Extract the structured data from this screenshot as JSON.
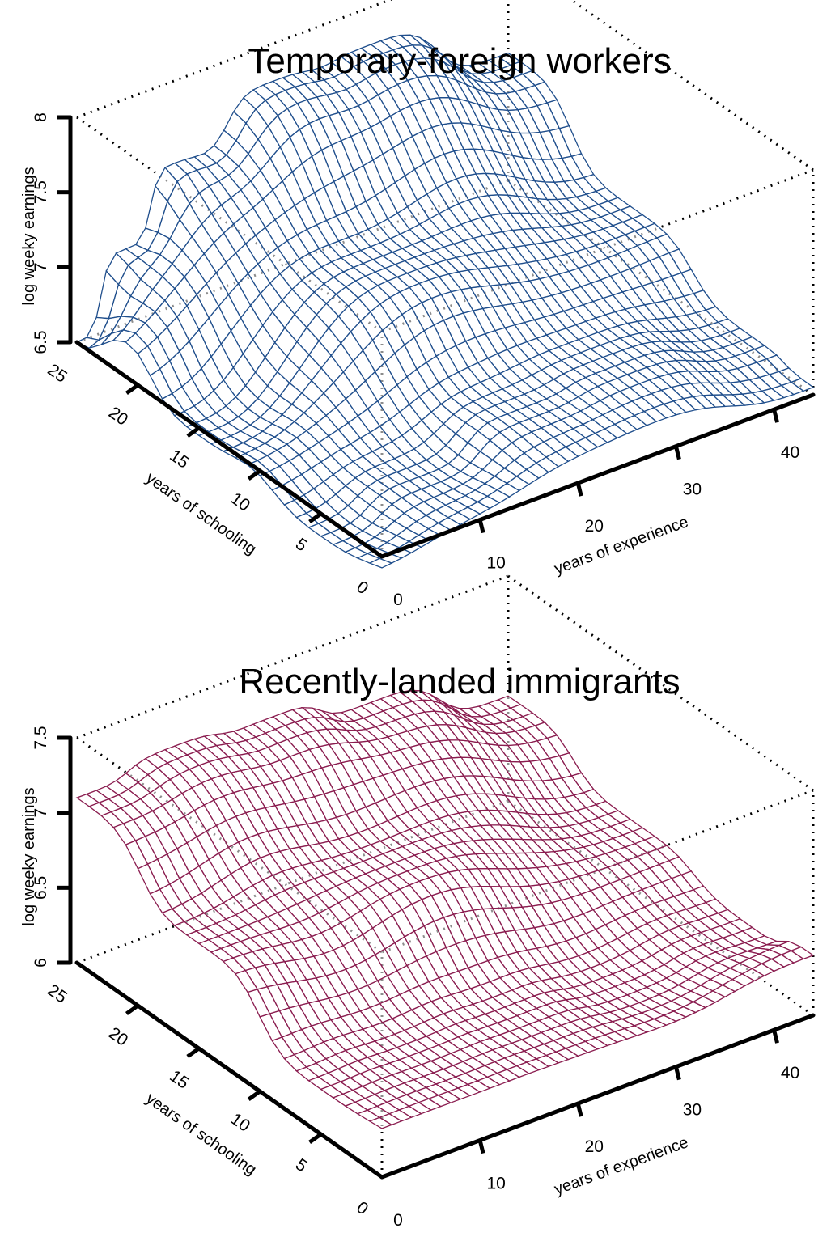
{
  "chart_data": [
    {
      "type": "surface",
      "title": "Temporary-foreign workers",
      "color": "#1f4e8c",
      "xlabel": "years of experience",
      "ylabel": "years of schooling",
      "zlabel": "log weeky earnings",
      "x_ticks": [
        0,
        10,
        20,
        30,
        40
      ],
      "y_ticks": [
        0,
        5,
        10,
        15,
        20,
        25
      ],
      "z_ticks": [
        "6.5",
        "7",
        "7.5",
        "8"
      ],
      "xlim": [
        0,
        44
      ],
      "ylim": [
        0,
        25
      ],
      "zlim": [
        6.5,
        8
      ],
      "grid": "dotted box",
      "surface_samples": [
        {
          "x": 0,
          "y": 25,
          "z": 6.5
        },
        {
          "x": 5,
          "y": 25,
          "z": 7.0
        },
        {
          "x": 10,
          "y": 25,
          "z": 7.45
        },
        {
          "x": 20,
          "y": 25,
          "z": 7.75
        },
        {
          "x": 30,
          "y": 25,
          "z": 7.75
        },
        {
          "x": 44,
          "y": 25,
          "z": 7.35
        },
        {
          "x": 0,
          "y": 15,
          "z": 6.45
        },
        {
          "x": 20,
          "y": 15,
          "z": 7.1
        },
        {
          "x": 44,
          "y": 15,
          "z": 6.9
        },
        {
          "x": 0,
          "y": 5,
          "z": 6.35
        },
        {
          "x": 10,
          "y": 5,
          "z": 6.5
        },
        {
          "x": 20,
          "y": 5,
          "z": 6.7
        },
        {
          "x": 30,
          "y": 5,
          "z": 6.75
        },
        {
          "x": 44,
          "y": 5,
          "z": 6.6
        },
        {
          "x": 44,
          "y": 0,
          "z": 6.55
        }
      ]
    },
    {
      "type": "surface",
      "title": "Recently-landed immigrants",
      "color": "#8a1c4f",
      "xlabel": "years of experience",
      "ylabel": "years of schooling",
      "zlabel": "log weeky earnings",
      "x_ticks": [
        0,
        10,
        20,
        30,
        40
      ],
      "y_ticks": [
        0,
        5,
        10,
        15,
        20,
        25
      ],
      "z_ticks": [
        "6",
        "6.5",
        "7",
        "7.5"
      ],
      "xlim": [
        0,
        44
      ],
      "ylim": [
        0,
        25
      ],
      "zlim": [
        6,
        7.5
      ],
      "grid": "dotted box",
      "surface_samples": [
        {
          "x": 0,
          "y": 25,
          "z": 7.1
        },
        {
          "x": 10,
          "y": 25,
          "z": 7.2
        },
        {
          "x": 20,
          "y": 25,
          "z": 7.15
        },
        {
          "x": 30,
          "y": 25,
          "z": 7.0
        },
        {
          "x": 44,
          "y": 25,
          "z": 6.7
        },
        {
          "x": 0,
          "y": 15,
          "z": 6.7
        },
        {
          "x": 20,
          "y": 15,
          "z": 6.75
        },
        {
          "x": 44,
          "y": 15,
          "z": 6.45
        },
        {
          "x": 0,
          "y": 5,
          "z": 6.3
        },
        {
          "x": 10,
          "y": 5,
          "z": 6.3
        },
        {
          "x": 20,
          "y": 5,
          "z": 6.3
        },
        {
          "x": 30,
          "y": 5,
          "z": 6.25
        },
        {
          "x": 44,
          "y": 5,
          "z": 6.3
        },
        {
          "x": 44,
          "y": 0,
          "z": 6.4
        }
      ]
    }
  ]
}
